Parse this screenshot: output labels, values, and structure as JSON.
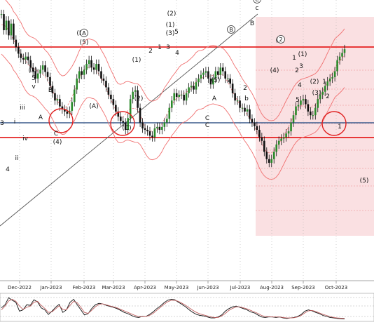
{
  "chart_data": [
    {
      "type": "line",
      "title": "",
      "xlabel": "",
      "ylabel": "",
      "x_ticks": [
        "Dec-2022",
        "Jan-2023",
        "Feb-2023",
        "Mar-2023",
        "Apr-2023",
        "May-2023",
        "Jun-2023",
        "Jul-2023",
        "Aug-2023",
        "Sep-2023",
        "Oct-2023"
      ],
      "series": [
        {
          "name": "",
          "values": [
            228,
            206,
            219,
            199,
            215,
            193,
            183,
            174,
            168,
            166,
            170,
            165,
            155,
            150,
            140,
            147,
            152,
            158,
            149,
            142,
            130,
            120,
            110,
            112,
            102,
            98,
            95,
            92,
            96,
            108,
            125,
            140,
            150,
            145,
            152,
            160,
            165,
            155,
            152,
            160,
            150,
            140,
            137,
            128,
            118,
            112,
            104,
            95,
            88,
            82,
            80,
            70,
            86,
            112,
            122,
            124,
            100,
            80,
            72,
            70,
            68,
            62,
            60,
            72,
            74,
            70,
            74,
            80,
            85,
            100,
            110,
            120,
            115,
            118,
            118,
            110,
            120,
            128,
            130,
            125,
            135,
            140,
            145,
            148,
            150,
            140,
            132,
            140,
            150,
            145,
            155,
            150,
            140,
            140,
            133,
            120,
            110,
            110,
            100,
            100,
            95,
            98,
            85,
            80,
            75,
            70,
            60,
            55,
            40,
            30,
            25,
            30,
            40,
            50,
            55,
            58,
            60,
            65,
            68,
            80,
            90,
            102,
            104,
            110,
            112,
            105,
            95,
            90,
            90,
            100,
            112,
            118,
            122,
            130,
            136,
            140,
            142,
            150,
            165,
            170,
            175,
            180
          ]
        }
      ],
      "resistance_line": {
        "label": "",
        "color": "#e10000"
      },
      "support_line": {
        "label": "",
        "color": "#e10000"
      },
      "pivot_line": {
        "label": "",
        "color": "#3a5a8c"
      },
      "upper_band_color": "#f07070",
      "trend_line_color": "#555555",
      "target_zone_color": "#f7cfd3",
      "wave_labels": [
        "3",
        "4",
        "ii",
        "i",
        "iii",
        "iv",
        "v",
        "(3)",
        "5",
        "B",
        "A",
        "C",
        "(4)",
        "(A)",
        "(5)",
        "(B)",
        "(C)",
        "(1)",
        "(2)",
        "1",
        "2",
        "3",
        "4",
        "5",
        "(1)",
        "(2)",
        "(3)",
        "C",
        "(5)",
        "A",
        "a",
        "b",
        "c",
        "(4)",
        "(5)",
        "1",
        "2",
        "3",
        "4",
        "5",
        "(1)",
        "(2)",
        "(3)",
        "1",
        "2",
        "1",
        "2",
        "3",
        "C",
        "B",
        "A",
        "(5)"
      ],
      "circled_labels": [
        "A",
        "B",
        "C",
        "2"
      ]
    },
    {
      "type": "line",
      "title": "",
      "series": [
        {
          "name": "",
          "values": [
            48,
            60,
            88,
            78,
            70,
            35,
            40,
            60,
            58,
            80,
            72,
            48,
            40,
            22,
            35,
            50,
            62,
            30,
            40,
            70,
            82,
            60,
            40,
            20,
            25,
            45,
            60,
            66,
            64,
            58,
            54,
            50,
            45,
            38,
            30,
            25,
            18,
            12,
            10,
            14,
            14,
            22,
            32,
            45,
            55,
            68,
            78,
            82,
            80,
            70,
            62,
            52,
            40,
            30,
            22,
            18,
            16,
            12,
            8,
            8,
            12,
            20,
            35,
            45,
            52,
            55,
            50,
            45,
            40,
            32,
            28,
            20,
            12,
            10,
            12,
            12,
            10,
            12,
            8,
            6,
            8,
            10,
            14,
            22,
            35,
            40,
            36,
            30,
            25,
            18,
            14,
            10,
            8,
            6,
            5,
            4
          ]
        },
        {
          "name": "",
          "values": [
            40,
            55,
            75,
            82,
            74,
            55,
            42,
            50,
            55,
            70,
            74,
            58,
            46,
            30,
            32,
            44,
            56,
            42,
            40,
            58,
            74,
            68,
            50,
            30,
            26,
            38,
            52,
            62,
            64,
            60,
            56,
            52,
            48,
            42,
            36,
            30,
            24,
            18,
            14,
            13,
            14,
            18,
            26,
            38,
            50,
            62,
            72,
            78,
            78,
            74,
            66,
            58,
            48,
            38,
            30,
            24,
            20,
            16,
            12,
            10,
            10,
            16,
            26,
            38,
            46,
            52,
            52,
            48,
            44,
            38,
            32,
            26,
            18,
            14,
            13,
            12,
            12,
            12,
            10,
            8,
            8,
            9,
            12,
            18,
            28,
            36,
            38,
            34,
            28,
            22,
            18,
            14,
            10,
            8,
            7,
            6
          ]
        }
      ]
    }
  ]
}
